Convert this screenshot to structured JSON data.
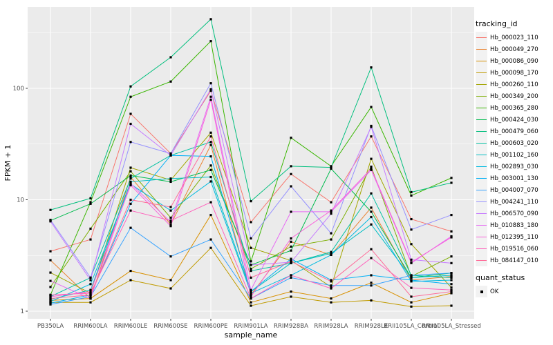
{
  "figure": {
    "panel_background": "#EBEBEB",
    "gridline_color": "#FFFFFF",
    "tick_color": "#333333",
    "tick_label_color": "#4D4D4D",
    "point_color": "#000000"
  },
  "legend": {
    "tracking_title": "tracking_id",
    "quant_title": "quant_status",
    "quant_items": [
      {
        "label": "OK",
        "marker": "black-square"
      }
    ]
  },
  "chart_data": {
    "type": "line",
    "title": "",
    "xlabel": "sample_name",
    "ylabel": "FPKM + 1",
    "y_scale": "log10",
    "ylim": [
      0.85,
      550
    ],
    "y_major_ticks": [
      1,
      10,
      100
    ],
    "y_tick_labels": [
      "1",
      "10",
      "100"
    ],
    "y_minor_ticks": [
      3.1623,
      31.623,
      316.23
    ],
    "grid": "on",
    "legend_position": "right",
    "point_marker": "black-square",
    "x_categories": [
      "PB350LA",
      "RRIM600LA",
      "RRIM600LE",
      "RRIM600SE",
      "RRIM600PE",
      "RRIM901LA",
      "RRIM928BA",
      "RRIM928LA",
      "RRIM928LE",
      "RRII105LA_Control",
      "RRII105LA_Stressed"
    ],
    "series": [
      {
        "name": "Hb_000023_110",
        "color": "#F8766D",
        "values": [
          3.45,
          4.4,
          59,
          26,
          95,
          6.3,
          17,
          9.5,
          37,
          6.7,
          5.2
        ]
      },
      {
        "name": "Hb_000049_270",
        "color": "#EA8331",
        "values": [
          2.87,
          1.3,
          16,
          6.0,
          31,
          1.4,
          4.2,
          3.2,
          8.5,
          1.9,
          2.05
        ]
      },
      {
        "name": "Hb_000086_090",
        "color": "#D89000",
        "values": [
          1.25,
          1.3,
          2.3,
          1.9,
          7.3,
          1.2,
          1.5,
          1.3,
          1.8,
          1.2,
          1.45
        ]
      },
      {
        "name": "Hb_000098_170",
        "color": "#C09B00",
        "values": [
          1.2,
          1.2,
          1.9,
          1.6,
          3.7,
          1.12,
          1.35,
          1.2,
          1.25,
          1.1,
          1.12
        ]
      },
      {
        "name": "Hb_000260_110",
        "color": "#A3A500",
        "values": [
          2.22,
          1.45,
          19.4,
          15,
          40,
          3.7,
          2.85,
          1.65,
          23.3,
          4.0,
          1.63
        ]
      },
      {
        "name": "Hb_000349_200",
        "color": "#7CAE00",
        "values": [
          1.65,
          5.5,
          18,
          6.9,
          20.3,
          2.4,
          3.8,
          4.4,
          19.8,
          2.05,
          3.1
        ]
      },
      {
        "name": "Hb_000365_280",
        "color": "#39B600",
        "values": [
          1.4,
          9.5,
          84,
          115,
          265,
          2.8,
          36,
          20,
          68,
          10.9,
          15.7
        ]
      },
      {
        "name": "Hb_000424_030",
        "color": "#00BB4E",
        "values": [
          6.5,
          9.2,
          16.5,
          14.5,
          18.5,
          2.6,
          3.5,
          19,
          7.8,
          2.0,
          2.2
        ]
      },
      {
        "name": "Hb_000479_060",
        "color": "#00BF7D",
        "values": [
          8.1,
          10.3,
          104,
          190,
          417,
          9.7,
          20,
          19.5,
          154,
          11.7,
          14.2
        ]
      },
      {
        "name": "Hb_000603_020",
        "color": "#00C1A3",
        "values": [
          1.35,
          2.0,
          15.5,
          25,
          33,
          2.3,
          2.7,
          3.4,
          11.4,
          2.1,
          2.0
        ]
      },
      {
        "name": "Hb_001102_160",
        "color": "#00BFC4",
        "values": [
          1.28,
          1.55,
          14.5,
          15.5,
          16,
          1.5,
          2.7,
          3.3,
          6.0,
          2.0,
          2.1
        ]
      },
      {
        "name": "Hb_002893_030",
        "color": "#00BAE0",
        "values": [
          1.22,
          1.75,
          13.8,
          8.0,
          14.6,
          1.45,
          2.1,
          3.2,
          7.0,
          1.85,
          1.9
        ]
      },
      {
        "name": "Hb_003001_130",
        "color": "#00B0F6",
        "values": [
          1.18,
          1.4,
          9.2,
          25,
          24.5,
          1.5,
          2.95,
          1.9,
          2.1,
          1.9,
          1.75
        ]
      },
      {
        "name": "Hb_004007_070",
        "color": "#35A2FF",
        "values": [
          1.15,
          1.35,
          5.6,
          3.1,
          4.4,
          1.3,
          2.0,
          1.7,
          1.7,
          2.1,
          2.2
        ]
      },
      {
        "name": "Hb_004241_110",
        "color": "#9590FF",
        "values": [
          6.6,
          2.0,
          33,
          26,
          111,
          4.5,
          13.2,
          5.0,
          46,
          5.4,
          7.3
        ]
      },
      {
        "name": "Hb_006570_090",
        "color": "#C77CFF",
        "values": [
          6.4,
          1.9,
          48,
          25,
          98,
          2.6,
          2.75,
          7.5,
          45,
          2.9,
          2.7
        ]
      },
      {
        "name": "Hb_010883_180",
        "color": "#E76BF3",
        "values": [
          1.87,
          1.3,
          14.0,
          6.3,
          84,
          1.55,
          7.8,
          7.8,
          18.5,
          2.7,
          4.7
        ]
      },
      {
        "name": "Hb_012395_110",
        "color": "#FA62DB",
        "values": [
          1.35,
          1.5,
          13.5,
          5.8,
          79,
          1.35,
          4.5,
          8.0,
          19,
          2.75,
          4.6
        ]
      },
      {
        "name": "Hb_019516_060",
        "color": "#FF62BC",
        "values": [
          1.4,
          1.45,
          8.0,
          6.5,
          9.5,
          1.3,
          2.1,
          1.6,
          3.0,
          1.62,
          1.55
        ]
      },
      {
        "name": "Hb_084147_010",
        "color": "#FF6A98",
        "values": [
          1.3,
          1.4,
          10.0,
          8.6,
          37,
          2.0,
          2.8,
          1.85,
          3.6,
          1.35,
          1.5
        ]
      }
    ]
  }
}
